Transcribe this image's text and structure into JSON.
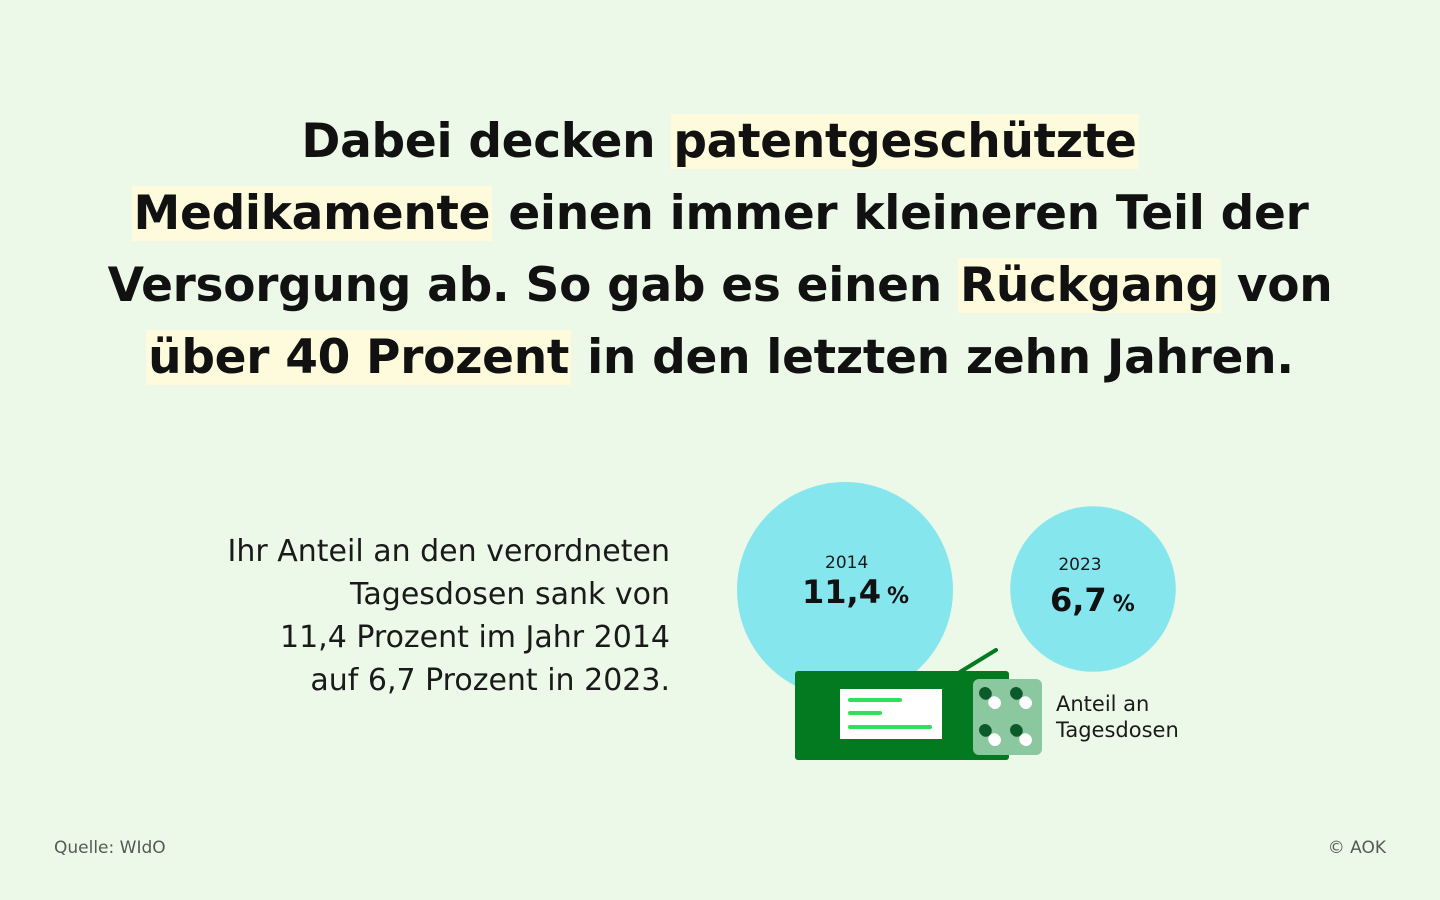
{
  "headline": {
    "line1_a": "Dabei decken ",
    "line1_hl": "patentgeschützte",
    "line2_hl": "Medikamente",
    "line2_b": " einen immer kleineren Teil der",
    "line3_a": "Versorgung ab. So gab es einen ",
    "line3_hl": "Rückgang",
    "line3_b": " von",
    "line4_hl": "über 40 Prozent",
    "line4_b": " in den letzten zehn Jahren."
  },
  "description": {
    "line1": "Ihr Anteil an den verordneten",
    "line2": "Tagesdosen sank von",
    "line3": "11,4 Prozent im Jahr 2014",
    "line4": "auf 6,7 Prozent in 2023."
  },
  "chart_data": {
    "type": "bubble",
    "unit": "%",
    "legend": [
      "Anteil an",
      "Tagesdosen"
    ],
    "points": [
      {
        "year": "2014",
        "value": 11.4,
        "label": "11,4"
      },
      {
        "year": "2023",
        "value": 6.7,
        "label": "6,7"
      }
    ]
  },
  "colors": {
    "background": "#edf9e8",
    "bubble": "#85e6ee",
    "highlight": "#fdfbdc",
    "box_green": "#047a20",
    "accent_green": "#2ee05a",
    "blister": "#8bc8a0"
  },
  "footer": {
    "source": "Quelle: WIdO",
    "copyright": "© AOK"
  }
}
